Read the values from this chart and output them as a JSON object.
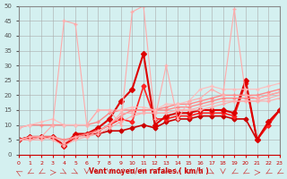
{
  "xlabel": "Vent moyen/en rafales ( km/h )",
  "ylabel": "",
  "background_color": "#d4f0f0",
  "grid_color": "#aaaaaa",
  "xlim": [
    0,
    23
  ],
  "ylim": [
    0,
    50
  ],
  "x": [
    0,
    1,
    2,
    3,
    4,
    5,
    6,
    7,
    8,
    9,
    10,
    11,
    12,
    13,
    14,
    15,
    16,
    17,
    18,
    19,
    20,
    21,
    22,
    23
  ],
  "series": [
    {
      "y": [
        5,
        6,
        6,
        6,
        3,
        6,
        7,
        7,
        8,
        8,
        9,
        10,
        9,
        11,
        12,
        12,
        13,
        13,
        13,
        12,
        12,
        5,
        10,
        15
      ],
      "color": "#cc0000",
      "lw": 1.2,
      "marker": "D",
      "ms": 2.5
    },
    {
      "y": [
        5,
        6,
        6,
        6,
        3,
        6,
        7,
        8,
        10,
        12,
        11,
        23,
        12,
        12,
        13,
        13,
        14,
        14,
        14,
        13,
        24,
        5,
        10,
        15
      ],
      "color": "#ff2222",
      "lw": 1.2,
      "marker": "D",
      "ms": 2.5
    },
    {
      "y": [
        5,
        6,
        6,
        6,
        3,
        7,
        7,
        9,
        12,
        18,
        22,
        34,
        10,
        13,
        14,
        14,
        15,
        15,
        15,
        14,
        25,
        5,
        11,
        15
      ],
      "color": "#dd0000",
      "lw": 1.5,
      "marker": "D",
      "ms": 3
    },
    {
      "y": [
        9,
        10,
        10,
        10,
        10,
        10,
        10,
        11,
        14,
        15,
        15,
        15,
        15,
        16,
        17,
        17,
        18,
        19,
        20,
        20,
        20,
        20,
        21,
        22
      ],
      "color": "#ff8888",
      "lw": 1.0,
      "marker": "+",
      "ms": 3
    },
    {
      "y": [
        5,
        5,
        6,
        6,
        5,
        6,
        7,
        8,
        10,
        13,
        15,
        15,
        15,
        15,
        16,
        16,
        17,
        18,
        19,
        19,
        19,
        19,
        20,
        21
      ],
      "color": "#ff8888",
      "lw": 1.0,
      "marker": "+",
      "ms": 3
    },
    {
      "y": [
        5,
        5,
        5,
        6,
        4,
        6,
        6,
        7,
        9,
        11,
        13,
        14,
        14,
        14,
        15,
        15,
        16,
        17,
        18,
        18,
        18,
        18,
        19,
        20
      ],
      "color": "#ffaaaa",
      "lw": 0.8,
      "marker": "+",
      "ms": 3
    },
    {
      "y": [
        5,
        6,
        6,
        5,
        3,
        5,
        6,
        8,
        10,
        14,
        14,
        14,
        14,
        14,
        15,
        15,
        15,
        16,
        17,
        18,
        18,
        18,
        18,
        19
      ],
      "color": "#ffaaaa",
      "lw": 0.8,
      "marker": "+",
      "ms": 3
    },
    {
      "y": [
        9,
        10,
        11,
        12,
        10,
        10,
        10,
        15,
        15,
        15,
        16,
        16,
        15,
        17,
        17,
        18,
        22,
        23,
        22,
        22,
        22,
        22,
        23,
        24
      ],
      "color": "#ffbbbb",
      "lw": 0.8,
      "marker": "+",
      "ms": 3
    },
    {
      "y": [
        5,
        6,
        6,
        10,
        45,
        44,
        10,
        15,
        15,
        10,
        48,
        50,
        12,
        30,
        12,
        18,
        19,
        22,
        20,
        49,
        20,
        19,
        20,
        21
      ],
      "color": "#ffaaaa",
      "lw": 0.8,
      "marker": "+",
      "ms": 2.5
    }
  ],
  "wind_arrows": true
}
